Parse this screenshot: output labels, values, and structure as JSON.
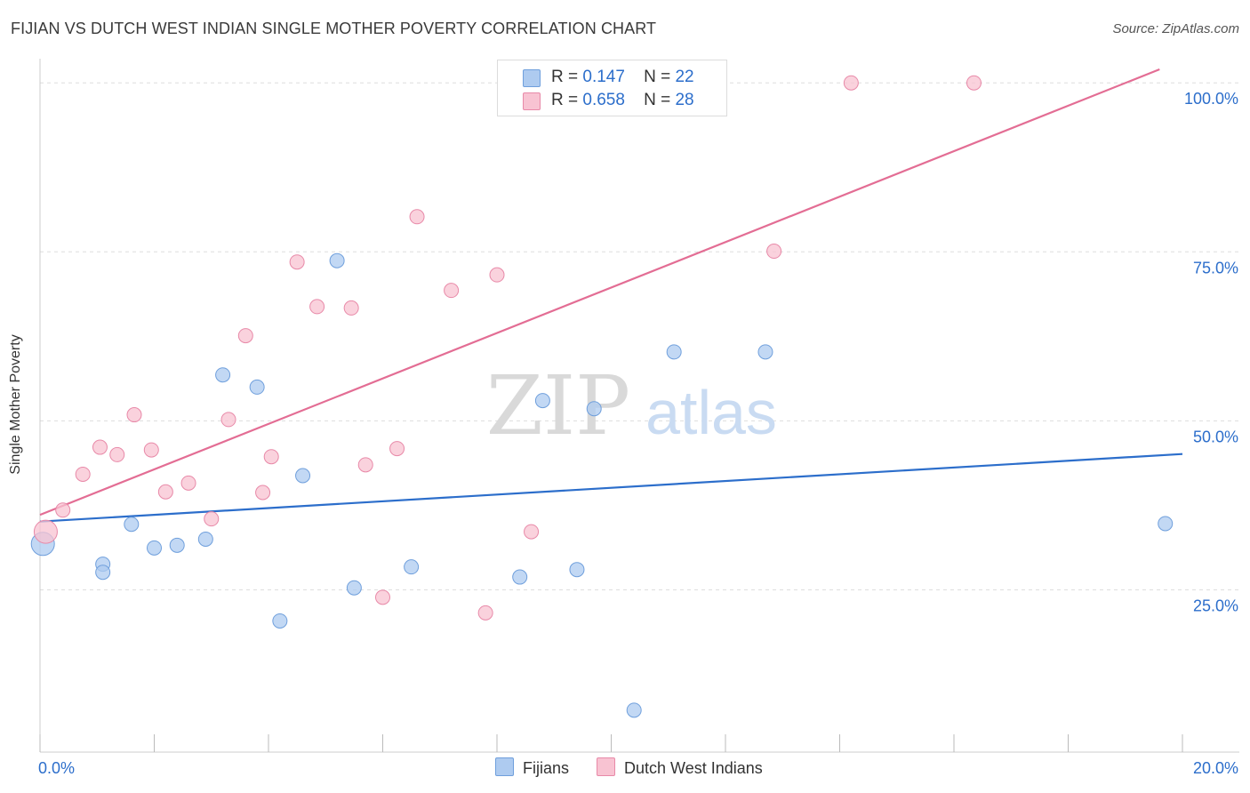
{
  "title": "FIJIAN VS DUTCH WEST INDIAN SINGLE MOTHER POVERTY CORRELATION CHART",
  "source": "Source: ZipAtlas.com",
  "watermark": {
    "zip": "ZIP",
    "atlas": "atlas"
  },
  "legend_stats": [
    {
      "r_label": "R =",
      "r_value": "0.147",
      "n_label": "N =",
      "n_value": "22",
      "color": "#aecbf0",
      "border": "#6f9fdc"
    },
    {
      "r_label": "R =",
      "r_value": "0.658",
      "n_label": "N =",
      "n_value": "28",
      "color": "#f8c3d2",
      "border": "#e889a8"
    }
  ],
  "legend_bottom": [
    {
      "label": "Fijians",
      "color": "#aecbf0",
      "border": "#6f9fdc"
    },
    {
      "label": "Dutch West Indians",
      "color": "#f8c3d2",
      "border": "#e889a8"
    }
  ],
  "chart_data": {
    "type": "scatter",
    "title": "FIJIAN VS DUTCH WEST INDIAN SINGLE MOTHER POVERTY CORRELATION CHART",
    "xlabel": "",
    "ylabel": "Single Mother Poverty",
    "xlim": [
      0,
      20
    ],
    "ylim": [
      1,
      102
    ],
    "x_tick_labels": [
      {
        "value": 0,
        "label": "0.0%"
      },
      {
        "value": 20,
        "label": "20.0%"
      }
    ],
    "y_tick_labels": [
      {
        "value": 25,
        "label": "25.0%"
      },
      {
        "value": 50,
        "label": "50.0%"
      },
      {
        "value": 75,
        "label": "75.0%"
      },
      {
        "value": 100,
        "label": "100.0%"
      }
    ],
    "series": [
      {
        "name": "Fijians",
        "color": "#aecbf0",
        "stroke": "#6f9fdc",
        "line_color": "#2c6ecb",
        "trend": [
          [
            0,
            35.1
          ],
          [
            20,
            45.1
          ]
        ],
        "points": [
          [
            0.05,
            31.8
          ],
          [
            1.1,
            28.8
          ],
          [
            1.1,
            27.6
          ],
          [
            1.6,
            34.7
          ],
          [
            2.0,
            31.2
          ],
          [
            2.4,
            31.6
          ],
          [
            2.9,
            32.5
          ],
          [
            3.2,
            56.8
          ],
          [
            3.8,
            55.0
          ],
          [
            4.2,
            20.4
          ],
          [
            4.6,
            41.9
          ],
          [
            5.2,
            73.7
          ],
          [
            5.5,
            25.3
          ],
          [
            6.5,
            28.4
          ],
          [
            8.4,
            26.9
          ],
          [
            8.8,
            53.0
          ],
          [
            9.4,
            28.0
          ],
          [
            9.7,
            51.8
          ],
          [
            10.4,
            7.2
          ],
          [
            11.1,
            60.2
          ],
          [
            12.7,
            60.2
          ],
          [
            19.7,
            34.8
          ]
        ]
      },
      {
        "name": "Dutch West Indians",
        "color": "#f8c3d2",
        "stroke": "#e889a8",
        "line_color": "#e36d94",
        "trend": [
          [
            0,
            36.1
          ],
          [
            19.6,
            102
          ]
        ],
        "points": [
          [
            0.1,
            33.6
          ],
          [
            0.4,
            36.8
          ],
          [
            0.75,
            42.1
          ],
          [
            1.05,
            46.1
          ],
          [
            1.35,
            45.0
          ],
          [
            1.65,
            50.9
          ],
          [
            1.95,
            45.7
          ],
          [
            2.2,
            39.5
          ],
          [
            2.6,
            40.8
          ],
          [
            3.0,
            35.5
          ],
          [
            3.3,
            50.2
          ],
          [
            3.6,
            62.6
          ],
          [
            3.9,
            39.4
          ],
          [
            4.05,
            44.7
          ],
          [
            4.5,
            73.5
          ],
          [
            4.85,
            66.9
          ],
          [
            5.45,
            66.7
          ],
          [
            5.7,
            43.5
          ],
          [
            6.0,
            23.9
          ],
          [
            6.25,
            45.9
          ],
          [
            6.6,
            80.2
          ],
          [
            7.2,
            69.3
          ],
          [
            7.8,
            21.6
          ],
          [
            8.0,
            71.6
          ],
          [
            8.6,
            33.6
          ],
          [
            12.85,
            75.1
          ],
          [
            14.2,
            100.0
          ],
          [
            16.35,
            100.0
          ]
        ]
      }
    ]
  }
}
